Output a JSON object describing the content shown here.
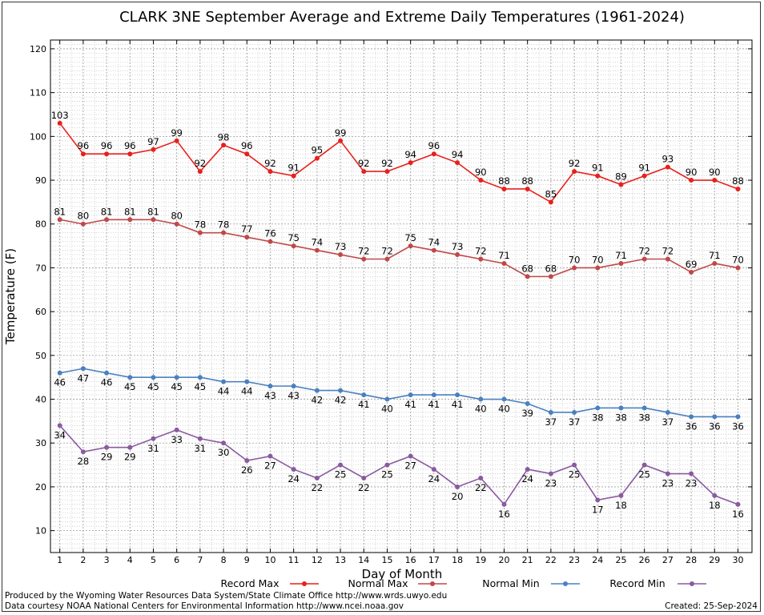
{
  "chart_data": {
    "type": "line",
    "title": "CLARK 3NE September Average and Extreme Daily Temperatures (1961-2024)",
    "xlabel": "Day of Month",
    "ylabel": "Temperature (F)",
    "xlim": [
      0.6,
      30.6
    ],
    "ylim": [
      5,
      122
    ],
    "x_ticks": [
      1,
      2,
      3,
      4,
      5,
      6,
      7,
      8,
      9,
      10,
      11,
      12,
      13,
      14,
      15,
      16,
      17,
      18,
      19,
      20,
      21,
      22,
      23,
      24,
      25,
      26,
      27,
      28,
      29,
      30
    ],
    "y_ticks": [
      10,
      20,
      30,
      40,
      50,
      60,
      70,
      80,
      90,
      100,
      110,
      120
    ],
    "grid": true,
    "legend_placement": "bottom",
    "x": [
      1,
      2,
      3,
      4,
      5,
      6,
      7,
      8,
      9,
      10,
      11,
      12,
      13,
      14,
      15,
      16,
      17,
      18,
      19,
      20,
      21,
      22,
      23,
      24,
      25,
      26,
      27,
      28,
      29,
      30
    ],
    "series": [
      {
        "name": "Record Max",
        "color": "#e8201c",
        "label_pos": "above",
        "values": [
          103,
          96,
          96,
          96,
          97,
          99,
          92,
          98,
          96,
          92,
          91,
          95,
          99,
          92,
          92,
          94,
          96,
          94,
          90,
          88,
          88,
          85,
          92,
          91,
          89,
          91,
          93,
          90,
          90,
          88
        ]
      },
      {
        "name": "Normal Max",
        "color": "#c04848",
        "label_pos": "above",
        "values": [
          81,
          80,
          81,
          81,
          81,
          80,
          78,
          78,
          77,
          76,
          75,
          74,
          73,
          72,
          72,
          75,
          74,
          73,
          72,
          71,
          68,
          68,
          70,
          70,
          71,
          72,
          72,
          69,
          71,
          70
        ]
      },
      {
        "name": "Normal Min",
        "color": "#4a80bf",
        "label_pos": "below",
        "values": [
          46,
          47,
          46,
          45,
          45,
          45,
          45,
          44,
          44,
          43,
          43,
          42,
          42,
          41,
          40,
          41,
          41,
          41,
          40,
          40,
          39,
          37,
          37,
          38,
          38,
          38,
          37,
          36,
          36,
          36
        ]
      },
      {
        "name": "Record Min",
        "color": "#8a5aa0",
        "label_pos": "below",
        "values": [
          34,
          28,
          29,
          29,
          31,
          33,
          31,
          30,
          26,
          27,
          24,
          22,
          25,
          22,
          25,
          27,
          24,
          20,
          22,
          16,
          24,
          23,
          25,
          17,
          18,
          25,
          23,
          23,
          18,
          16
        ]
      }
    ]
  },
  "footer": {
    "produced_by": "Produced by the Wyoming Water Resources Data System/State Climate Office http://www.wrds.uwyo.edu",
    "courtesy": "Data courtesy NOAA National Centers for Environmental Information http://www.ncei.noaa.gov",
    "created": "Created:  25-Sep-2024"
  }
}
